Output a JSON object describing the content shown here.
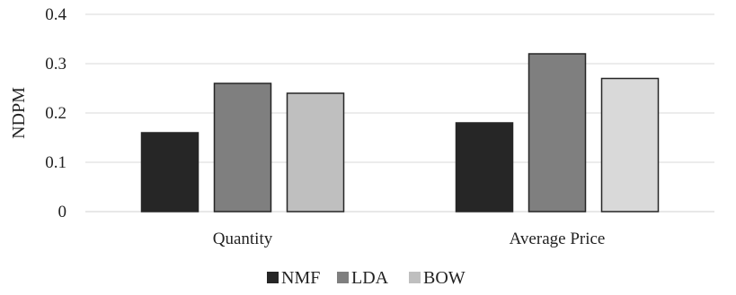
{
  "chart_data": {
    "type": "bar",
    "categories": [
      "Quantity",
      "Average Price"
    ],
    "series": [
      {
        "name": "NMF",
        "values": [
          0.16,
          0.18
        ],
        "color": "#262626"
      },
      {
        "name": "LDA",
        "values": [
          0.26,
          0.32
        ],
        "color": "#7f7f7f"
      },
      {
        "name": "BOW",
        "values": [
          0.24,
          0.27
        ],
        "color": "#bfbfbf",
        "color_alt": "#d9d9d9"
      }
    ],
    "ylabel": "NDPM",
    "ylim": [
      0,
      0.4
    ],
    "yticks": [
      0,
      0.1,
      0.2,
      0.3,
      0.4
    ],
    "ytick_labels": [
      "0",
      "0.1",
      "0.2",
      "0.3",
      "0.4"
    ],
    "grid": true,
    "legend_position": "bottom",
    "grid_color": "#d9d9d9",
    "bar_outline_color": "#262626"
  }
}
